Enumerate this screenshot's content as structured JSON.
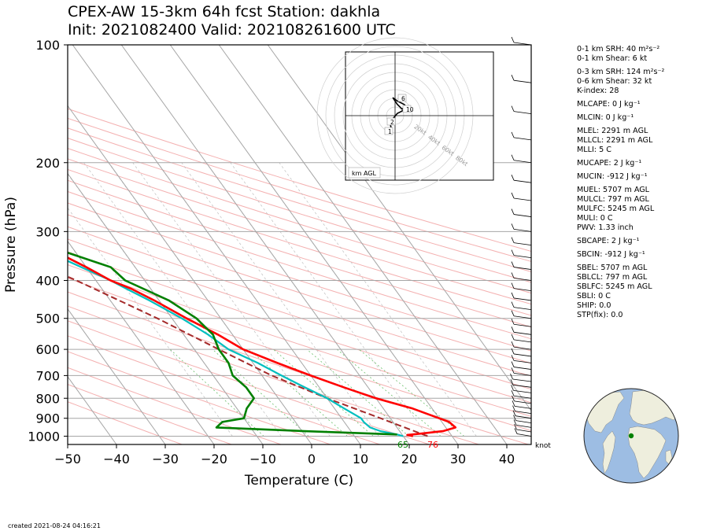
{
  "title": {
    "line1": "CPEX-AW 15-3km  64h fcst  Station: dakhla",
    "line2": "Init: 2021082400  Valid: 202108261600 UTC"
  },
  "chart_data": {
    "type": "skew-t",
    "xlabel": "Temperature (C)",
    "ylabel": "Pressure (hPa)",
    "xlim": [
      -50,
      45
    ],
    "ylim": [
      1050,
      100
    ],
    "x_ticks": [
      "−50",
      "−40",
      "−30",
      "−20",
      "−10",
      "0",
      "10",
      "20",
      "30",
      "40"
    ],
    "y_ticks": [
      "100",
      "200",
      "300",
      "400",
      "500",
      "600",
      "700",
      "800",
      "900",
      "1000"
    ],
    "temperature": [
      [
        1000,
        22
      ],
      [
        993,
        21
      ],
      [
        985,
        24
      ],
      [
        970,
        29
      ],
      [
        950,
        32
      ],
      [
        920,
        31.5
      ],
      [
        900,
        30
      ],
      [
        850,
        26
      ],
      [
        800,
        20
      ],
      [
        750,
        15
      ],
      [
        700,
        10
      ],
      [
        650,
        5
      ],
      [
        600,
        0
      ],
      [
        550,
        -3
      ],
      [
        500,
        -7
      ],
      [
        450,
        -11
      ],
      [
        420,
        -14
      ],
      [
        400,
        -17
      ],
      [
        370,
        -20
      ],
      [
        330,
        -25
      ],
      [
        300,
        -29
      ],
      [
        250,
        -37
      ],
      [
        200,
        -47
      ],
      [
        150,
        -59
      ],
      [
        130,
        -64
      ],
      [
        100,
        -72
      ]
    ],
    "dewpoint": [
      [
        1000,
        20
      ],
      [
        990,
        19
      ],
      [
        970,
        16
      ],
      [
        950,
        14.5
      ],
      [
        920,
        14
      ],
      [
        900,
        14
      ],
      [
        850,
        12
      ],
      [
        800,
        10
      ],
      [
        750,
        7
      ],
      [
        700,
        4
      ],
      [
        650,
        1
      ],
      [
        600,
        -3
      ],
      [
        550,
        -5
      ],
      [
        500,
        -8
      ],
      [
        450,
        -12
      ],
      [
        420,
        -15
      ],
      [
        400,
        -17
      ],
      [
        370,
        -21
      ],
      [
        330,
        -27
      ],
      [
        300,
        -32
      ],
      [
        250,
        -40
      ],
      [
        200,
        -50
      ],
      [
        150,
        -60
      ],
      [
        130,
        -65
      ],
      [
        100,
        -72
      ]
    ],
    "dewpoint_ascent": [
      [
        990,
        19
      ],
      [
        970,
        0
      ],
      [
        950,
        -17
      ],
      [
        920,
        -15
      ],
      [
        900,
        -10
      ],
      [
        850,
        -8
      ],
      [
        800,
        -5
      ],
      [
        750,
        -5
      ],
      [
        700,
        -6
      ],
      [
        650,
        -5
      ],
      [
        600,
        -5
      ],
      [
        550,
        -4
      ],
      [
        500,
        -5
      ],
      [
        450,
        -8
      ],
      [
        400,
        -14
      ],
      [
        370,
        -15
      ],
      [
        330,
        -24
      ],
      [
        300,
        -60
      ],
      [
        250,
        -58
      ],
      [
        200,
        -57
      ],
      [
        150,
        -56
      ],
      [
        130,
        -59
      ],
      [
        100,
        -58
      ]
    ],
    "parcel": [
      [
        1000,
        25
      ],
      [
        900,
        18
      ],
      [
        800,
        10
      ],
      [
        700,
        2
      ],
      [
        600,
        -5
      ],
      [
        500,
        -13
      ],
      [
        400,
        -24
      ],
      [
        300,
        -40
      ],
      [
        200,
        -65
      ],
      [
        100,
        -95
      ]
    ],
    "surface_labels": {
      "dewpoint": "65",
      "temperature": "76"
    },
    "wind_units_label": "knot",
    "hodograph": {
      "label": "km AGL",
      "ring_labels": [
        "20kt",
        "40kt",
        "60kt",
        "80kt"
      ],
      "height_labels": [
        "6",
        "10",
        "2",
        "1"
      ],
      "trace_uv": [
        [
          -3,
          -12
        ],
        [
          -4,
          -9
        ],
        [
          -3,
          -4
        ],
        [
          2,
          2
        ],
        [
          6,
          4
        ],
        [
          10,
          8
        ],
        [
          8,
          10
        ],
        [
          4,
          12
        ],
        [
          2,
          13
        ],
        [
          -2,
          16
        ],
        [
          2,
          10
        ],
        [
          6,
          6
        ],
        [
          12,
          8
        ]
      ]
    },
    "colors": {
      "temperature": "#ff0000",
      "dewpoint": "#00bfbf",
      "dewpoint_ascent": "#008000",
      "parcel": "#a52a2a"
    }
  },
  "indices": [
    "0-1 km SRH: 40 m²s⁻²",
    "0-1 km Shear: 6 kt",
    "0-3 km SRH: 124 m²s⁻²",
    "0-6 km Shear: 32 kt",
    "K-index: 28",
    "MLCAPE: 0 J kg⁻¹",
    "MLCIN: 0 J kg⁻¹",
    "MLEL: 2291 m AGL",
    "MLLCL: 2291 m AGL",
    "MLLI: 5 C",
    "MUCAPE: 2 J kg⁻¹",
    "MUCIN: -912 J kg⁻¹",
    "MUEL: 5707 m AGL",
    "MULCL: 797 m AGL",
    "MULFC: 5245 m AGL",
    "MULI: 0 C",
    "PWV: 1.33 inch",
    "SBCAPE: 2 J kg⁻¹",
    "SBCIN: -912 J kg⁻¹",
    "SBEL: 5707 m AGL",
    "SBLCL: 797 m AGL",
    "SBLFC: 5245 m AGL",
    "SBLI: 0 C",
    "SHIP: 0.0",
    "STP(fix): 0.0"
  ],
  "footer": "created 2021-08-24 04:16:21",
  "globe": {
    "ocean": "#9dbde3",
    "land": "#eeeedd",
    "station_marker": "#008000"
  }
}
